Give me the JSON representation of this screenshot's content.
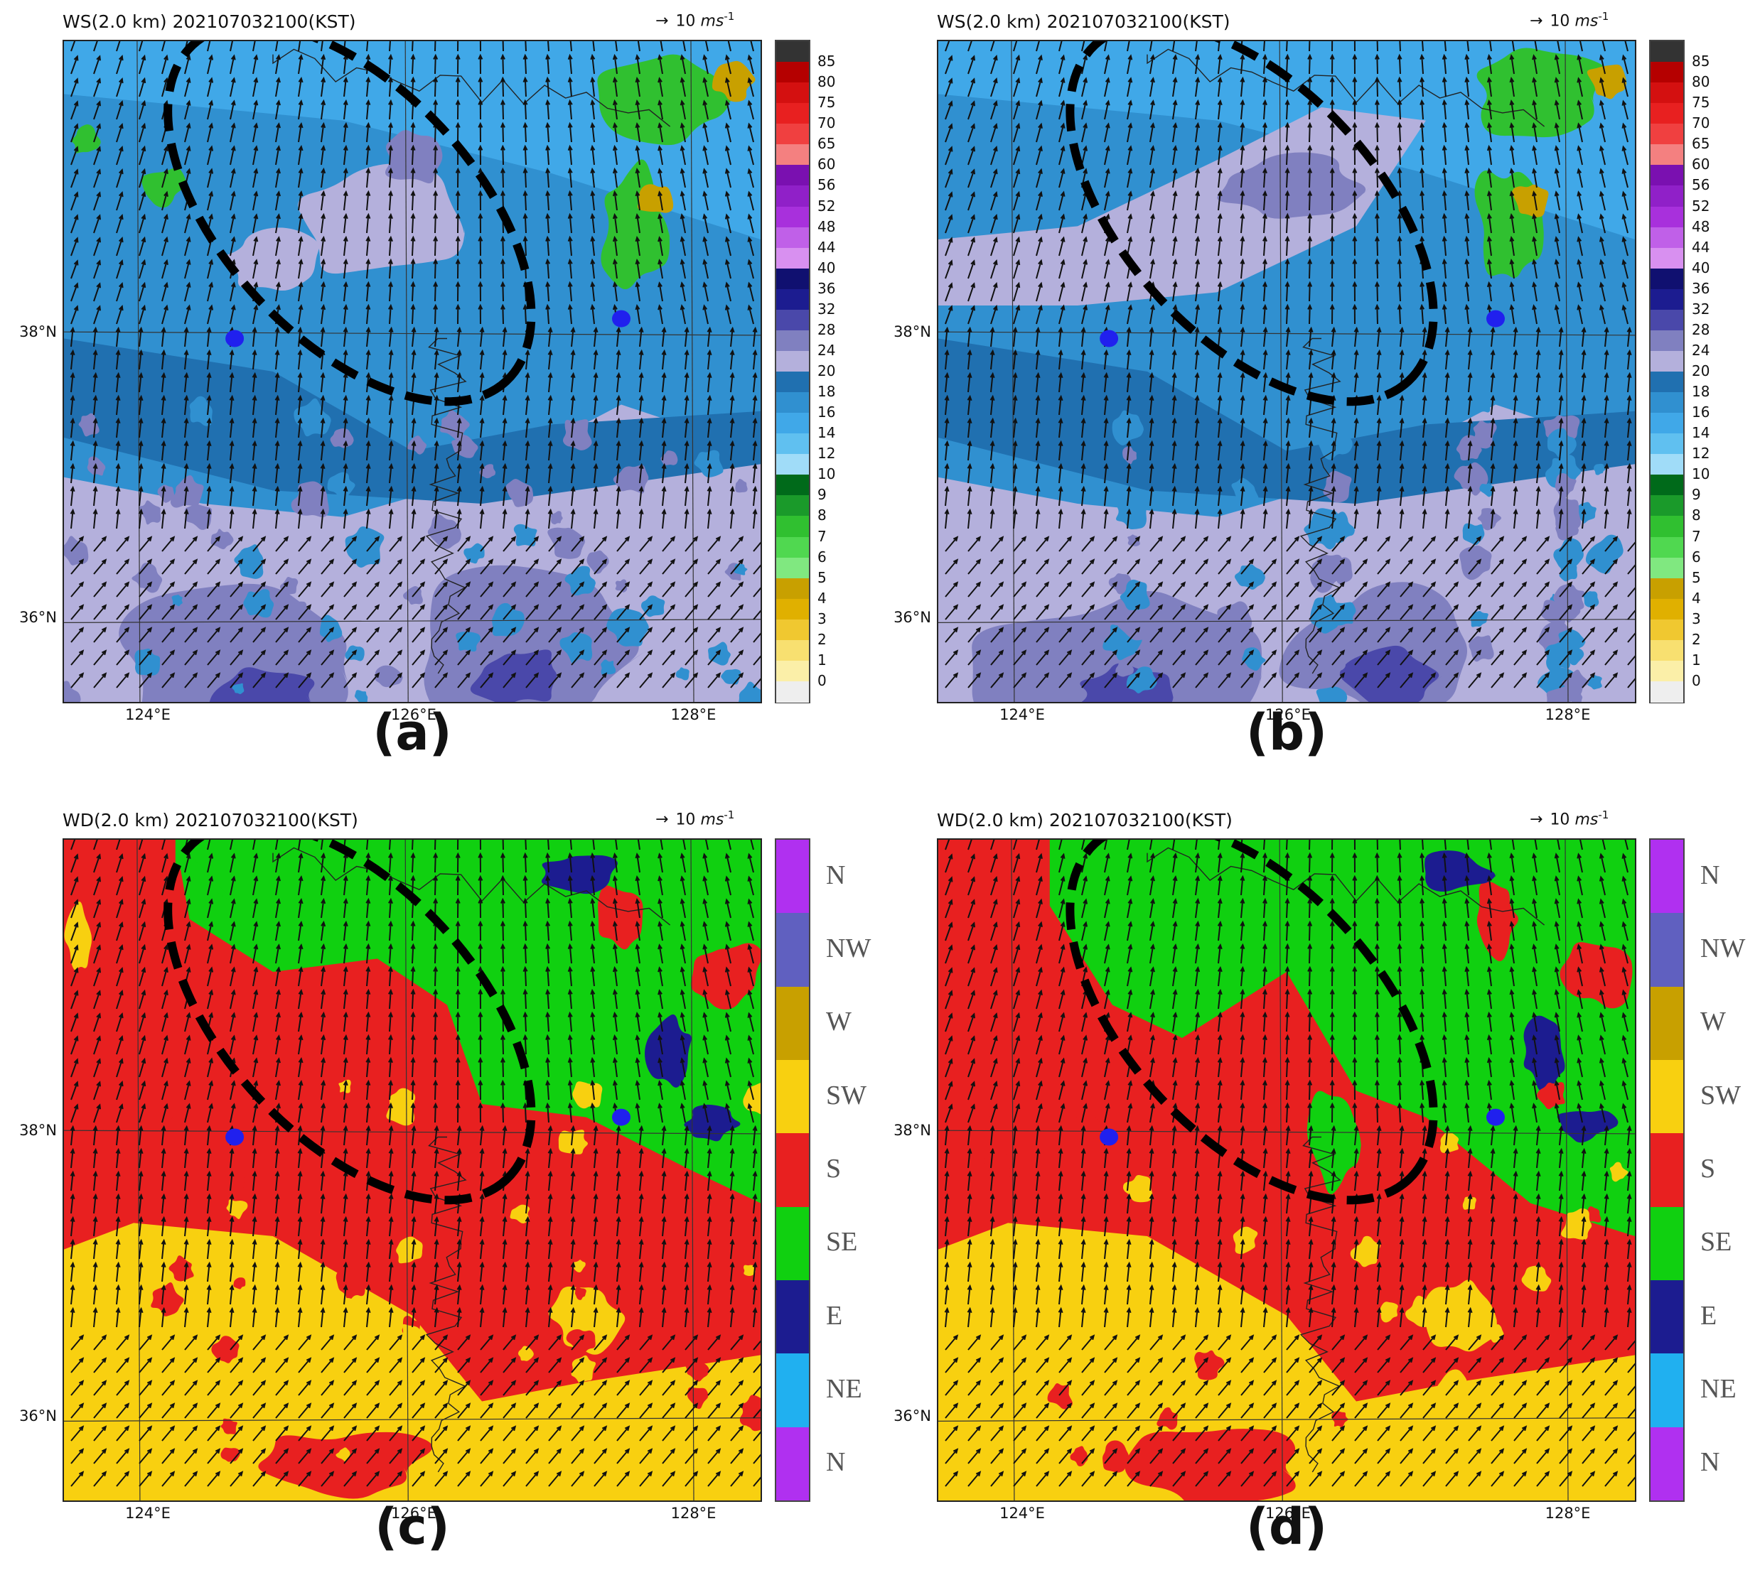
{
  "panels": [
    {
      "id": "a",
      "title": "WS(2.0 km) 202107032100(KST)",
      "wind_ref": "10",
      "wind_unit": "ms",
      "wind_exp": "-1",
      "letter": "(a)",
      "field": "ws",
      "variant": 0
    },
    {
      "id": "b",
      "title": "WS(2.0 km) 202107032100(KST)",
      "wind_ref": "10",
      "wind_unit": "ms",
      "wind_exp": "-1",
      "letter": "(b)",
      "field": "ws",
      "variant": 1
    },
    {
      "id": "c",
      "title": "WD(2.0 km) 202107032100(KST)",
      "wind_ref": "10",
      "wind_unit": "ms",
      "wind_exp": "-1",
      "letter": "(c)",
      "field": "wd",
      "variant": 0
    },
    {
      "id": "d",
      "title": "WD(2.0 km) 202107032100(KST)",
      "wind_ref": "10",
      "wind_unit": "ms",
      "wind_exp": "-1",
      "letter": "(d)",
      "field": "wd",
      "variant": 1
    }
  ],
  "axes": {
    "lon_ticks": [
      "124°E",
      "126°E",
      "128°E"
    ],
    "lat_ticks": [
      "38°N",
      "36°N"
    ]
  },
  "ws_colorbar": {
    "labels": [
      "85",
      "80",
      "75",
      "70",
      "65",
      "60",
      "56",
      "52",
      "48",
      "44",
      "40",
      "36",
      "32",
      "28",
      "24",
      "20",
      "18",
      "16",
      "14",
      "12",
      "10",
      "9",
      "8",
      "7",
      "6",
      "5",
      "4",
      "3",
      "2",
      "1",
      "0"
    ],
    "colors": [
      "#333333",
      "#b50000",
      "#d41010",
      "#e82020",
      "#f04040",
      "#f48080",
      "#7a10b0",
      "#9020c8",
      "#a830dc",
      "#c060e8",
      "#d890f0",
      "#101070",
      "#1c1c90",
      "#4a48aa",
      "#8080c0",
      "#b4b0dc",
      "#2070b0",
      "#3090d0",
      "#40a8e8",
      "#60c0f0",
      "#a0dcf8",
      "#006a1a",
      "#1a9a2a",
      "#30c030",
      "#50d850",
      "#80e880",
      "#c8a000",
      "#e0b000",
      "#f0c830",
      "#f8e070",
      "#fbefa8",
      "#eeeeee"
    ]
  },
  "wd_colorbar": {
    "labels": [
      "N",
      "NW",
      "W",
      "SW",
      "S",
      "SE",
      "E",
      "NE",
      "N"
    ],
    "colors": [
      "#b030f0",
      "#6060c0",
      "#c8a000",
      "#f8d010",
      "#e82020",
      "#10d010",
      "#1c1c90",
      "#20b0f0",
      "#b030f0"
    ]
  },
  "stations_color": "#2020ee",
  "ellipse_color": "#000000"
}
